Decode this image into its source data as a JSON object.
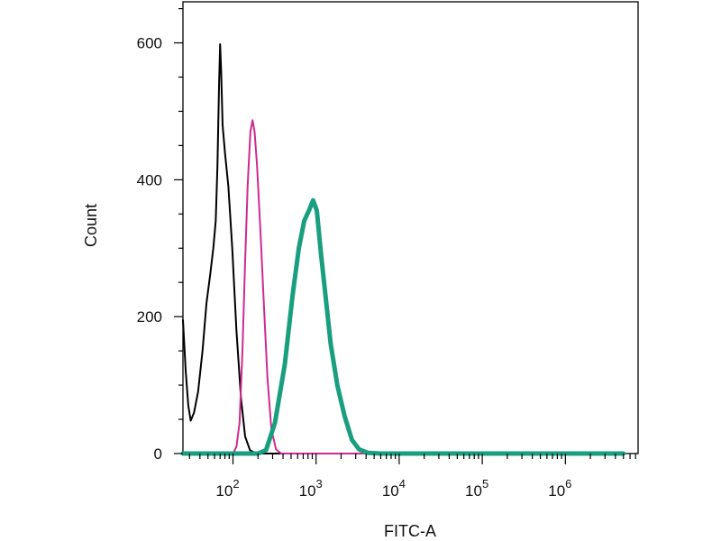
{
  "chart_data": {
    "type": "line",
    "title": "",
    "xlabel": "FITC-A",
    "ylabel": "Count",
    "x_scale": "log",
    "xlim": [
      25,
      7500000
    ],
    "ylim": [
      0,
      660
    ],
    "x_ticks": [
      {
        "value": 100,
        "base": "10",
        "exp": "2"
      },
      {
        "value": 1000,
        "base": "10",
        "exp": "3"
      },
      {
        "value": 10000,
        "base": "10",
        "exp": "4"
      },
      {
        "value": 100000,
        "base": "10",
        "exp": "5"
      },
      {
        "value": 1000000,
        "base": "10",
        "exp": "6"
      }
    ],
    "y_ticks": [
      0,
      200,
      400,
      600
    ],
    "grid": false,
    "legend": "none",
    "series": [
      {
        "color": "#000000",
        "width": 2,
        "points": [
          [
            25,
            195
          ],
          [
            27,
            120
          ],
          [
            29,
            70
          ],
          [
            31,
            48
          ],
          [
            34,
            60
          ],
          [
            38,
            90
          ],
          [
            43,
            150
          ],
          [
            48,
            220
          ],
          [
            53,
            260
          ],
          [
            58,
            300
          ],
          [
            62,
            340
          ],
          [
            65,
            420
          ],
          [
            68,
            540
          ],
          [
            70,
            598
          ],
          [
            72,
            560
          ],
          [
            75,
            480
          ],
          [
            80,
            440
          ],
          [
            88,
            390
          ],
          [
            98,
            300
          ],
          [
            110,
            180
          ],
          [
            125,
            80
          ],
          [
            140,
            25
          ],
          [
            160,
            5
          ],
          [
            185,
            1
          ],
          [
            220,
            0
          ],
          [
            300,
            0
          ],
          [
            5000000,
            0
          ]
        ]
      },
      {
        "color": "#cc2b8f",
        "width": 2,
        "points": [
          [
            25,
            0
          ],
          [
            100,
            0
          ],
          [
            110,
            10
          ],
          [
            120,
            45
          ],
          [
            130,
            150
          ],
          [
            140,
            280
          ],
          [
            150,
            390
          ],
          [
            162,
            470
          ],
          [
            172,
            487
          ],
          [
            182,
            470
          ],
          [
            195,
            420
          ],
          [
            215,
            320
          ],
          [
            235,
            220
          ],
          [
            260,
            110
          ],
          [
            290,
            35
          ],
          [
            330,
            6
          ],
          [
            380,
            0
          ],
          [
            5000000,
            0
          ]
        ]
      },
      {
        "color": "#1a9e80",
        "width": 5,
        "points": [
          [
            25,
            0
          ],
          [
            200,
            0
          ],
          [
            250,
            5
          ],
          [
            320,
            45
          ],
          [
            420,
            130
          ],
          [
            520,
            230
          ],
          [
            620,
            300
          ],
          [
            720,
            340
          ],
          [
            820,
            355
          ],
          [
            920,
            370
          ],
          [
            1020,
            355
          ],
          [
            1150,
            290
          ],
          [
            1300,
            230
          ],
          [
            1500,
            160
          ],
          [
            1800,
            100
          ],
          [
            2200,
            55
          ],
          [
            2700,
            20
          ],
          [
            3300,
            6
          ],
          [
            4200,
            1
          ],
          [
            6000,
            0
          ],
          [
            100000,
            0
          ],
          [
            5000000,
            0
          ]
        ]
      }
    ]
  }
}
